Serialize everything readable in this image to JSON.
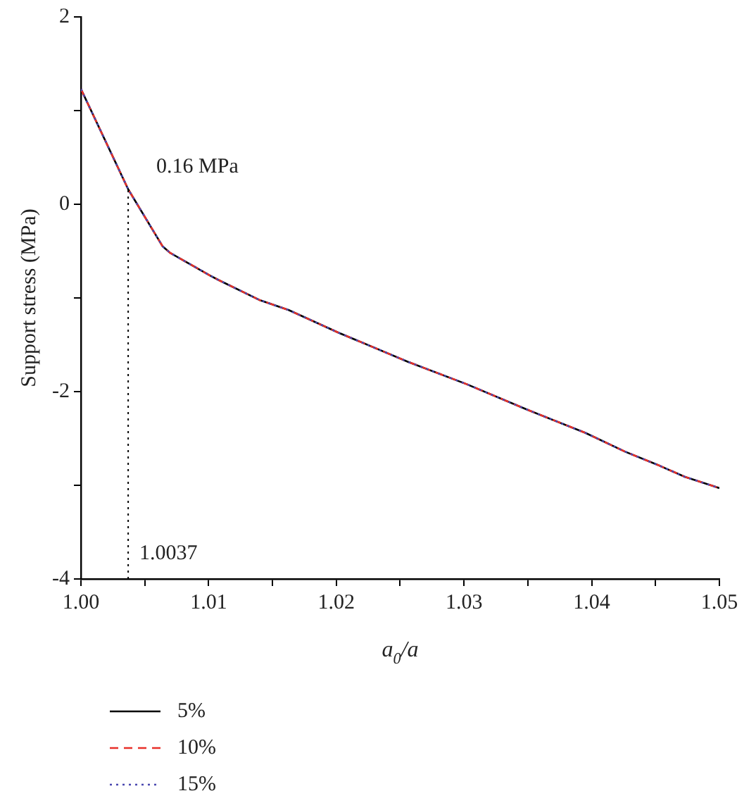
{
  "chart_data": {
    "type": "line",
    "xlabel": "a$_{0}$/a",
    "ylabel": "Support stress (MPa)",
    "x": [
      1.0,
      1.0037,
      1.0064,
      1.007,
      1.0101,
      1.0108,
      1.01395,
      1.01628,
      1.02016,
      1.02558,
      1.0302,
      1.0349,
      1.0395,
      1.0426,
      1.0453,
      1.0473,
      1.05
    ],
    "series": [
      {
        "name": "5%",
        "color": "#000000",
        "line_style": "solid",
        "values": [
          1.23,
          0.16,
          -0.45,
          -0.52,
          -0.76,
          -0.81,
          -1.02,
          -1.13,
          -1.37,
          -1.68,
          -1.92,
          -2.19,
          -2.44,
          -2.64,
          -2.79,
          -2.91,
          -3.03
        ]
      },
      {
        "name": "10%",
        "color": "#e8302a",
        "line_style": "dashed",
        "values": [
          1.23,
          0.16,
          -0.45,
          -0.52,
          -0.76,
          -0.81,
          -1.02,
          -1.13,
          -1.37,
          -1.68,
          -1.92,
          -2.19,
          -2.44,
          -2.64,
          -2.79,
          -2.91,
          -3.03
        ]
      },
      {
        "name": "15%",
        "color": "#4a48b0",
        "line_style": "dotted",
        "values": [
          1.23,
          0.16,
          -0.45,
          -0.52,
          -0.76,
          -0.81,
          -1.02,
          -1.13,
          -1.37,
          -1.68,
          -1.92,
          -2.19,
          -2.44,
          -2.64,
          -2.79,
          -2.91,
          -3.03
        ]
      }
    ],
    "xlim": [
      1.0,
      1.05
    ],
    "xticks": [
      {
        "value": 1.0,
        "label": "1.00"
      },
      {
        "value": 1.005,
        "label": null
      },
      {
        "value": 1.01,
        "label": "1.01"
      },
      {
        "value": 1.015,
        "label": null
      },
      {
        "value": 1.02,
        "label": "1.02"
      },
      {
        "value": 1.025,
        "label": null
      },
      {
        "value": 1.03,
        "label": "1.03"
      },
      {
        "value": 1.035,
        "label": null
      },
      {
        "value": 1.04,
        "label": "1.04"
      },
      {
        "value": 1.045,
        "label": null
      },
      {
        "value": 1.05,
        "label": "1.05"
      }
    ],
    "ylim": [
      -4,
      2
    ],
    "yticks": [
      2,
      {
        "value": 1,
        "label": null
      },
      0,
      {
        "value": -1,
        "label": null
      },
      -2,
      {
        "value": -3,
        "label": null
      },
      -4
    ],
    "ref_lines": [
      {
        "axis": "x",
        "value": 1.0037,
        "label": "1.0037",
        "line_style": "dotted",
        "color": "#000000"
      }
    ],
    "annotations": [
      {
        "text": "0.16 MPa",
        "x": 1.0037,
        "y": 0.16
      }
    ],
    "grid": false,
    "legend": "bottom left",
    "marker": "none"
  }
}
